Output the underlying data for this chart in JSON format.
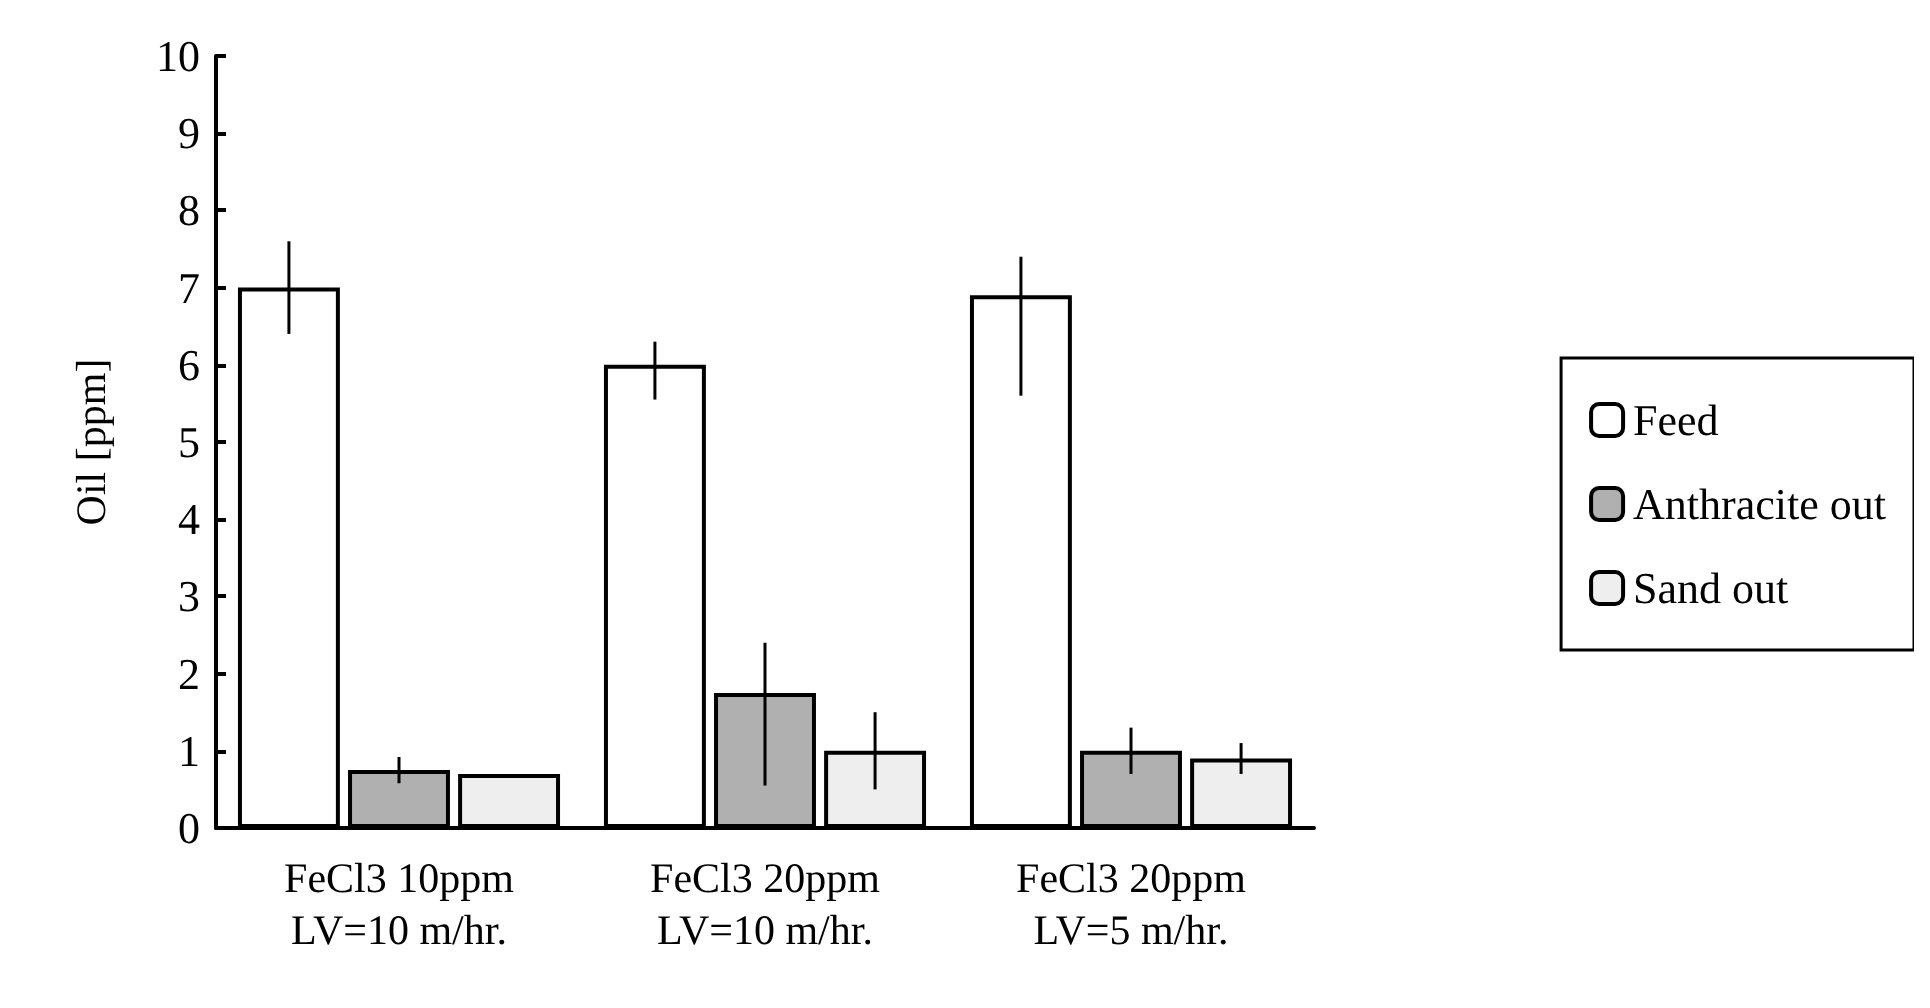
{
  "chart_data": {
    "type": "bar",
    "ylabel": "Oil [ppm]",
    "categories": [
      "FeCl3 10ppm\nLV=10 m/hr.",
      "FeCl3 20ppm\nLV=10 m/hr.",
      "FeCl3 20ppm\nLV=5 m/hr."
    ],
    "series": [
      {
        "name": "Feed",
        "color": "#ffffff",
        "values": [
          7.0,
          6.0,
          6.9
        ],
        "errors": [
          0.6,
          [
            5.55,
            6.3
          ],
          [
            5.6,
            7.4
          ]
        ]
      },
      {
        "name": "Anthracite out",
        "color": "#b0b0b0",
        "values": [
          0.75,
          1.75,
          1.0
        ],
        "errors": [
          0.17,
          [
            0.55,
            2.4
          ],
          0.3
        ]
      },
      {
        "name": "Sand out",
        "color": "#eeeeee",
        "values": [
          0.7,
          1.0,
          0.9
        ],
        "errors": [
          null,
          0.5,
          0.2
        ]
      }
    ],
    "ylim": [
      0,
      10
    ],
    "yticks": [
      0,
      1,
      2,
      3,
      4,
      5,
      6,
      7,
      8,
      9,
      10
    ],
    "grid": false,
    "legend": "right"
  }
}
